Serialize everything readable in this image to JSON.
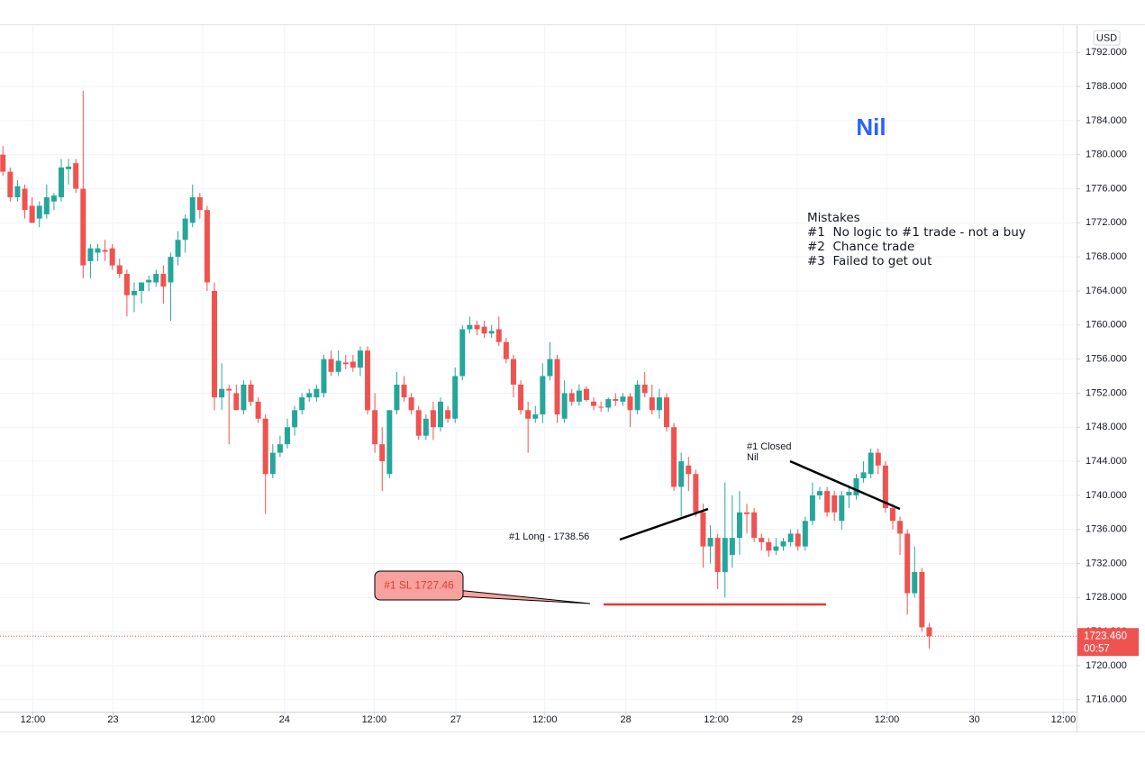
{
  "chart_data": {
    "type": "candlestick",
    "currency": "USD",
    "xlim": [
      -0.4,
      147.2
    ],
    "xticks": [
      {
        "value": 4.1,
        "label": "12:00"
      },
      {
        "value": 15.1,
        "label": "23"
      },
      {
        "value": 27.4,
        "label": "12:00"
      },
      {
        "value": 38.6,
        "label": "24"
      },
      {
        "value": 50.9,
        "label": "12:00"
      },
      {
        "value": 62.1,
        "label": "27"
      },
      {
        "value": 74.3,
        "label": "12:00"
      },
      {
        "value": 85.4,
        "label": "28"
      },
      {
        "value": 97.8,
        "label": "12:00"
      },
      {
        "value": 108.9,
        "label": "29"
      },
      {
        "value": 121.2,
        "label": "12:00"
      },
      {
        "value": 133.2,
        "label": "30"
      },
      {
        "value": 145.4,
        "label": "12:00"
      }
    ],
    "ylim": [
      1714.6,
      1795.2
    ],
    "yticks": [
      {
        "value": 1716,
        "label": "1716.000"
      },
      {
        "value": 1720,
        "label": "1720.000"
      },
      {
        "value": 1724,
        "label": "1724.000"
      },
      {
        "value": 1728,
        "label": "1728.000"
      },
      {
        "value": 1732,
        "label": "1732.000"
      },
      {
        "value": 1736,
        "label": "1736.000"
      },
      {
        "value": 1740,
        "label": "1740.000"
      },
      {
        "value": 1744,
        "label": "1744.000"
      },
      {
        "value": 1748,
        "label": "1748.000"
      },
      {
        "value": 1752,
        "label": "1752.000"
      },
      {
        "value": 1756,
        "label": "1756.000"
      },
      {
        "value": 1760,
        "label": "1760.000"
      },
      {
        "value": 1764,
        "label": "1764.000"
      },
      {
        "value": 1768,
        "label": "1768.000"
      },
      {
        "value": 1772,
        "label": "1772.000"
      },
      {
        "value": 1776,
        "label": "1776.000"
      },
      {
        "value": 1780,
        "label": "1780.000"
      },
      {
        "value": 1784,
        "label": "1784.000"
      },
      {
        "value": 1788,
        "label": "1788.000"
      },
      {
        "value": 1792,
        "label": "1792.000"
      }
    ],
    "grid": true,
    "up_color": "#26a69a",
    "down_color": "#ef5350",
    "open": [
      1780,
      1778,
      1775,
      1776,
      1774,
      1772.5,
      1773,
      1774.5,
      1775,
      1778.3,
      1779,
      1776,
      1767.5,
      1768.5,
      1768.8,
      1769,
      1767,
      1766,
      1763.5,
      1764,
      1765,
      1765,
      1766,
      1765,
      1768,
      1770,
      1772,
      1775,
      1773.5,
      1764,
      1751.5,
      1752.5,
      1752,
      1750,
      1753,
      1751,
      1749,
      1742.5,
      1745,
      1746,
      1748,
      1750,
      1751.5,
      1751.5,
      1752,
      1756,
      1754.5,
      1755.6,
      1755.7,
      1755,
      1757,
      1750,
      1746,
      1742.5,
      1750,
      1753,
      1751.5,
      1750,
      1747,
      1750,
      1748,
      1750,
      1749,
      1754,
      1759.5,
      1760,
      1759.8,
      1759,
      1759.5,
      1758,
      1756,
      1753,
      1750,
      1749,
      1749.5,
      1754,
      1756,
      1749,
      1752,
      1751,
      1752.5,
      1751,
      1750.4,
      1750.3,
      1751.3,
      1751,
      1751.6,
      1750,
      1753,
      1751.5,
      1750,
      1751.5,
      1748,
      1741,
      1743.5,
      1742.5,
      1738,
      1734,
      1735,
      1731,
      1733,
      1735,
      1738,
      1738,
      1735,
      1734.5,
      1733.5,
      1734,
      1734.5,
      1735.5,
      1734,
      1737,
      1740,
      1740.5,
      1740,
      1737,
      1740,
      1740,
      1742,
      1742.5,
      1745,
      1743.5,
      1738.5,
      1737,
      1735.5,
      1728.5,
      1731,
      1724.5
    ],
    "high": [
      1781,
      1778.5,
      1777,
      1776.5,
      1775,
      1774.5,
      1776.5,
      1775.5,
      1779.5,
      1779.5,
      1779.5,
      1787.5,
      1769.5,
      1769.5,
      1770,
      1769.5,
      1767.8,
      1766.5,
      1765,
      1765,
      1765.8,
      1766.5,
      1767,
      1768.5,
      1771,
      1773,
      1776.5,
      1775.5,
      1774,
      1765,
      1755.5,
      1753,
      1753,
      1753.5,
      1753.5,
      1751.5,
      1749.5,
      1746,
      1747,
      1749,
      1750.5,
      1752,
      1752.5,
      1753,
      1756.5,
      1757,
      1757,
      1756.5,
      1756.5,
      1757.5,
      1757.5,
      1752,
      1748,
      1750,
      1754.5,
      1754,
      1752,
      1750.5,
      1749.5,
      1751,
      1751.5,
      1750.5,
      1755,
      1760,
      1761,
      1760.5,
      1760.5,
      1760,
      1761,
      1758.5,
      1756.5,
      1753.5,
      1751,
      1750.5,
      1755.5,
      1758,
      1756.5,
      1753.5,
      1752.5,
      1753,
      1752.8,
      1751.5,
      1751,
      1751.5,
      1752,
      1752,
      1752,
      1753.5,
      1754.5,
      1753,
      1752.5,
      1752,
      1748.5,
      1745,
      1744.5,
      1743,
      1739,
      1736.5,
      1735.5,
      1741.5,
      1740,
      1740.5,
      1739,
      1738.5,
      1735.5,
      1735,
      1735,
      1735,
      1736,
      1736,
      1737.5,
      1741.5,
      1741,
      1741,
      1740.5,
      1740.5,
      1741,
      1742.5,
      1744,
      1745.5,
      1745.5,
      1744,
      1739,
      1737.5,
      1736,
      1734,
      1731.5,
      1725
    ],
    "low": [
      1777.5,
      1774.5,
      1774.5,
      1772.5,
      1772,
      1771.5,
      1772.5,
      1773.5,
      1774.5,
      1776.5,
      1775.5,
      1765.5,
      1765.5,
      1767.5,
      1767.5,
      1766.5,
      1765.5,
      1761,
      1761.5,
      1762.5,
      1764,
      1764.5,
      1762.5,
      1760.5,
      1767,
      1768.5,
      1771.5,
      1772.5,
      1764,
      1750,
      1750,
      1746,
      1750,
      1749.5,
      1750.5,
      1748.5,
      1737.8,
      1742,
      1744.5,
      1745.5,
      1747,
      1749.5,
      1751,
      1751,
      1751.5,
      1754,
      1754,
      1754.8,
      1754.5,
      1754,
      1749.5,
      1745,
      1740.5,
      1742,
      1749.5,
      1751,
      1749.5,
      1746.5,
      1746.5,
      1746.5,
      1747.5,
      1748.5,
      1748.5,
      1753.5,
      1759,
      1758.8,
      1758.5,
      1758.5,
      1757.5,
      1755.5,
      1751.5,
      1749.5,
      1745,
      1748.5,
      1748.5,
      1753.5,
      1748.5,
      1748.5,
      1750.5,
      1750.5,
      1751,
      1750,
      1749.8,
      1749.8,
      1750.5,
      1750.5,
      1748,
      1749.5,
      1751.5,
      1749.5,
      1749,
      1747.5,
      1740.5,
      1737.5,
      1740.5,
      1737.5,
      1731.5,
      1732,
      1729,
      1728,
      1731.5,
      1733,
      1735.5,
      1734.5,
      1733.5,
      1732.8,
      1733,
      1733.5,
      1734,
      1733.5,
      1733.5,
      1736.5,
      1739.5,
      1737.5,
      1737,
      1736,
      1738.5,
      1739.5,
      1741.5,
      1742,
      1742.5,
      1738,
      1736,
      1733,
      1726,
      1728,
      1724,
      1722
    ],
    "close": [
      1778,
      1775,
      1776.3,
      1773.5,
      1772,
      1774,
      1775,
      1775.2,
      1778.5,
      1778.6,
      1776,
      1767,
      1769,
      1769,
      1768.6,
      1767,
      1766,
      1763.5,
      1764,
      1765,
      1765.3,
      1766,
      1764.5,
      1768,
      1770,
      1772.5,
      1775,
      1773.5,
      1765,
      1751.5,
      1752.5,
      1752.3,
      1750,
      1753,
      1751,
      1749,
      1742.5,
      1745,
      1746,
      1748,
      1750,
      1751.5,
      1752,
      1752.5,
      1756,
      1754.5,
      1755.8,
      1755.4,
      1755,
      1757,
      1750,
      1746,
      1744,
      1750,
      1753,
      1751.5,
      1750,
      1747,
      1749,
      1748,
      1751,
      1749,
      1754,
      1759.5,
      1760,
      1759.5,
      1759,
      1759.3,
      1758,
      1756,
      1753,
      1750,
      1749,
      1749.5,
      1754,
      1756,
      1749.5,
      1752,
      1751,
      1752.3,
      1751.2,
      1750.5,
      1750.3,
      1751.3,
      1751.1,
      1751.6,
      1750,
      1753,
      1752,
      1750,
      1751.5,
      1748,
      1741,
      1744,
      1742.5,
      1738,
      1734,
      1735,
      1731,
      1735,
      1735,
      1738,
      1737.8,
      1735,
      1734.5,
      1733.5,
      1734,
      1734.6,
      1735.5,
      1734,
      1737,
      1740,
      1740.5,
      1738,
      1738,
      1740,
      1740.4,
      1742,
      1742.7,
      1745,
      1743.5,
      1738.5,
      1737,
      1735.5,
      1728.5,
      1731,
      1724.5,
      1723.46
    ],
    "last_price": {
      "value": 1723.46,
      "label": "1723.460"
    },
    "countdown": "00:57",
    "annotations": {
      "title": "Nil",
      "mistakes": [
        "Mistakes",
        "#1  No logic to #1 trade - not a buy",
        "#2  Chance trade",
        "#3  Failed to get out"
      ],
      "long": "#1 Long - 1738.56",
      "closed": [
        "#1 Closed",
        "Nil"
      ],
      "stop_loss": "#1 SL 1727.46"
    }
  }
}
